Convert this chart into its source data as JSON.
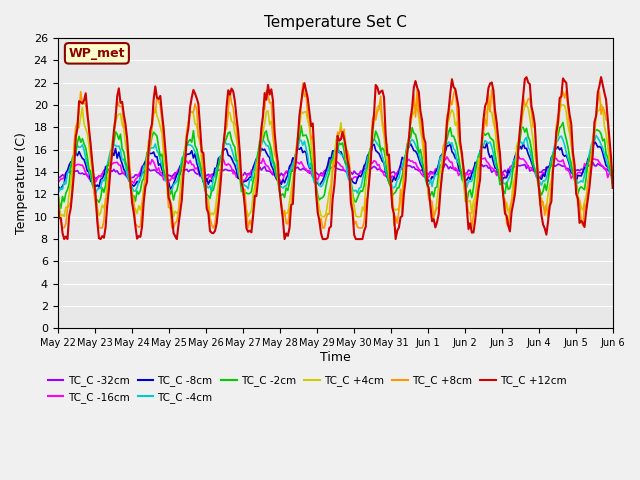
{
  "title": "Temperature Set C",
  "xlabel": "Time",
  "ylabel": "Temperature (C)",
  "ylim": [
    0,
    26
  ],
  "yticks": [
    0,
    2,
    4,
    6,
    8,
    10,
    12,
    14,
    16,
    18,
    20,
    22,
    24,
    26
  ],
  "bg_color": "#e8e8e8",
  "plot_bg": "#e8e8e8",
  "wp_met_label": "WP_met",
  "series_colors": {
    "TC_C -32cm": "#9900ff",
    "TC_C -16cm": "#ff00ff",
    "TC_C -8cm": "#0000cc",
    "TC_C -4cm": "#00cccc",
    "TC_C -2cm": "#00cc00",
    "TC_C +4cm": "#cccc00",
    "TC_C +8cm": "#ff9900",
    "TC_C +12cm": "#cc0000"
  },
  "xtick_labels": [
    "May 22",
    "May 23",
    "May 24",
    "May 25",
    "May 26",
    "May 27",
    "May 28",
    "May 29",
    "May 30",
    "May 31",
    "Jun 1",
    "Jun 2",
    "Jun 3",
    "Jun 4",
    "Jun 5",
    "Jun 6"
  ],
  "n_points": 336
}
